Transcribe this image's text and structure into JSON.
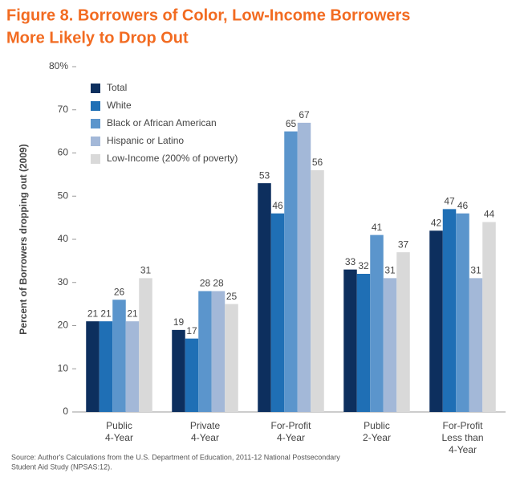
{
  "chart_data": {
    "type": "bar",
    "title": [
      "Figure 8. Borrowers of Color, Low-Income Borrowers",
      "More Likely to Drop Out"
    ],
    "y_label": "Percent of Borrowers dropping out (2009)",
    "source": [
      "Source: Author's Calculations from the U.S. Department of Education, 2011-12 National Postsecondary",
      "Student Aid Study (NPSAS:12)."
    ],
    "categories": [
      "Public\n4-Year",
      "Private\n4-Year",
      "For-Profit\n4-Year",
      "Public\n2-Year",
      "For-Profit\nLess than\n4-Year"
    ],
    "series": [
      {
        "name": "Total",
        "color": "#0d2f5e",
        "values": [
          21,
          19,
          53,
          33,
          42
        ]
      },
      {
        "name": "White",
        "color": "#1f6fb5",
        "values": [
          21,
          17,
          46,
          32,
          47
        ]
      },
      {
        "name": "Black or African American",
        "color": "#5b95cc",
        "values": [
          26,
          28,
          65,
          41,
          46
        ]
      },
      {
        "name": "Hispanic or Latino",
        "color": "#a3b8d8",
        "values": [
          21,
          28,
          67,
          31,
          31
        ]
      },
      {
        "name": "Low-Income (200% of poverty)",
        "color": "#d9d9d9",
        "values": [
          31,
          25,
          56,
          37,
          44
        ]
      }
    ],
    "ylim": [
      0,
      80
    ],
    "yticks": [
      0,
      10,
      20,
      30,
      40,
      50,
      60,
      70,
      {
        "value": 80,
        "label": "80%"
      }
    ],
    "legend": "upper left"
  }
}
